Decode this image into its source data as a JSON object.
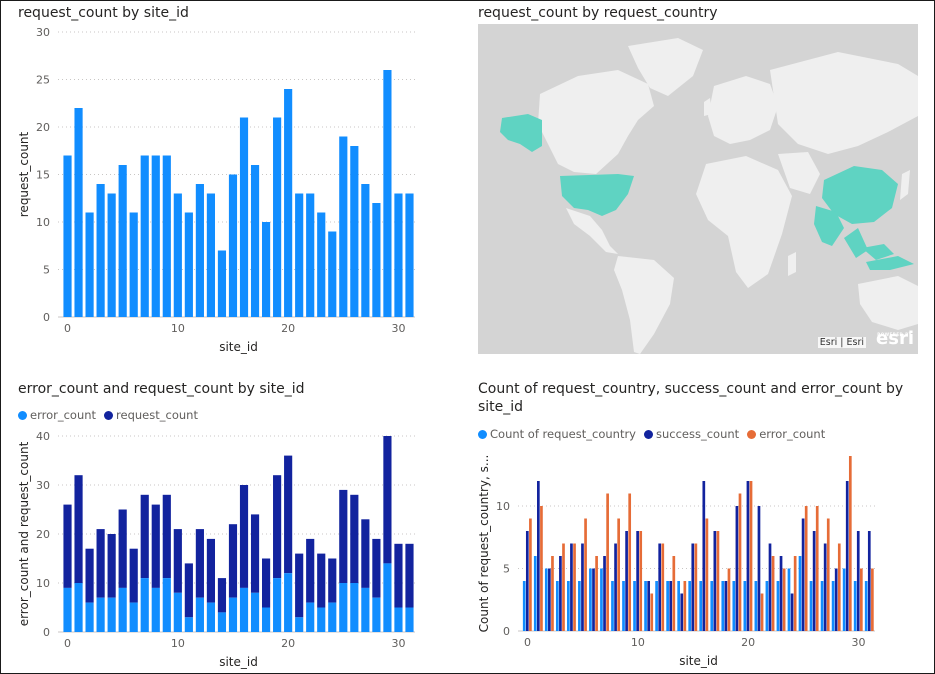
{
  "colors": {
    "request_bar": "#118dff",
    "error": "#118dff",
    "request_dark": "#12239e",
    "count_country": "#118dff",
    "success": "#12239e",
    "error_orange": "#e66c37",
    "map_land": "#efefef",
    "map_water": "#d4d4d4",
    "map_highlight": "#5fd3c2"
  },
  "chart_data": [
    {
      "type": "bar",
      "title": "request_count by site_id",
      "xlabel": "site_id",
      "ylabel": "request_count",
      "ylim": [
        0,
        30
      ],
      "yticks": [
        0,
        5,
        10,
        15,
        20,
        25,
        30
      ],
      "xticks": [
        0,
        10,
        20,
        30
      ],
      "x": [
        0,
        1,
        2,
        3,
        4,
        5,
        6,
        7,
        8,
        9,
        10,
        11,
        12,
        13,
        14,
        15,
        16,
        17,
        18,
        19,
        20,
        21,
        22,
        23,
        24,
        25,
        26,
        27,
        28,
        29,
        30,
        31
      ],
      "series": [
        {
          "values": [
            17,
            22,
            11,
            14,
            13,
            16,
            11,
            17,
            17,
            17,
            13,
            11,
            14,
            13,
            7,
            15,
            21,
            16,
            10,
            21,
            24,
            13,
            13,
            11,
            9,
            19,
            18,
            14,
            12,
            26,
            13,
            13
          ]
        }
      ]
    },
    {
      "type": "map",
      "title": "request_count by request_country",
      "attribution": "Esri | Esri",
      "logo": "esri",
      "logo_caption": "POWERED BY",
      "highlighted_regions": [
        "United States",
        "Alaska",
        "China",
        "India",
        "Southeast Asia"
      ]
    },
    {
      "type": "bar",
      "stacked": true,
      "title": "error_count and request_count by site_id",
      "xlabel": "site_id",
      "ylabel": "error_count and request_count",
      "ylim": [
        0,
        40
      ],
      "yticks": [
        0,
        10,
        20,
        30,
        40
      ],
      "xticks": [
        0,
        10,
        20,
        30
      ],
      "x": [
        0,
        1,
        2,
        3,
        4,
        5,
        6,
        7,
        8,
        9,
        10,
        11,
        12,
        13,
        14,
        15,
        16,
        17,
        18,
        19,
        20,
        21,
        22,
        23,
        24,
        25,
        26,
        27,
        28,
        29,
        30,
        31
      ],
      "series": [
        {
          "name": "error_count",
          "values": [
            9,
            10,
            6,
            7,
            7,
            9,
            6,
            11,
            9,
            11,
            8,
            3,
            7,
            6,
            4,
            7,
            9,
            8,
            5,
            11,
            12,
            3,
            6,
            5,
            6,
            10,
            10,
            9,
            7,
            14,
            5,
            5
          ]
        },
        {
          "name": "request_count",
          "values": [
            17,
            22,
            11,
            14,
            13,
            16,
            11,
            17,
            17,
            17,
            13,
            11,
            14,
            13,
            7,
            15,
            21,
            16,
            10,
            21,
            24,
            13,
            13,
            11,
            9,
            19,
            18,
            14,
            12,
            26,
            13,
            13
          ]
        }
      ]
    },
    {
      "type": "bar",
      "grouped": true,
      "title": "Count of request_country, success_count and error_count by site_id",
      "title_lines": [
        "Count of request_country, success_count and error_count by",
        "site_id"
      ],
      "xlabel": "site_id",
      "ylabel": "Count of request_country, s...",
      "ylim": [
        0,
        14
      ],
      "yticks": [
        0,
        5,
        10
      ],
      "xticks": [
        0,
        10,
        20,
        30
      ],
      "x": [
        0,
        1,
        2,
        3,
        4,
        5,
        6,
        7,
        8,
        9,
        10,
        11,
        12,
        13,
        14,
        15,
        16,
        17,
        18,
        19,
        20,
        21,
        22,
        23,
        24,
        25,
        26,
        27,
        28,
        29,
        30,
        31
      ],
      "series": [
        {
          "name": "Count of request_country",
          "values": [
            4,
            6,
            5,
            4,
            4,
            4,
            5,
            5,
            4,
            4,
            4,
            4,
            4,
            4,
            4,
            4,
            4,
            4,
            4,
            4,
            4,
            4,
            4,
            4,
            5,
            6,
            4,
            4,
            4,
            5,
            4,
            4
          ]
        },
        {
          "name": "success_count",
          "values": [
            8,
            12,
            5,
            6,
            7,
            7,
            5,
            6,
            7,
            8,
            8,
            4,
            7,
            4,
            3,
            7,
            12,
            8,
            4,
            10,
            12,
            10,
            7,
            6,
            3,
            9,
            8,
            7,
            5,
            12,
            8,
            8
          ]
        },
        {
          "name": "error_count",
          "values": [
            9,
            10,
            6,
            7,
            7,
            9,
            6,
            11,
            9,
            11,
            8,
            3,
            7,
            6,
            4,
            7,
            9,
            8,
            5,
            11,
            12,
            3,
            6,
            5,
            6,
            10,
            10,
            9,
            7,
            14,
            5,
            5
          ]
        }
      ]
    }
  ]
}
